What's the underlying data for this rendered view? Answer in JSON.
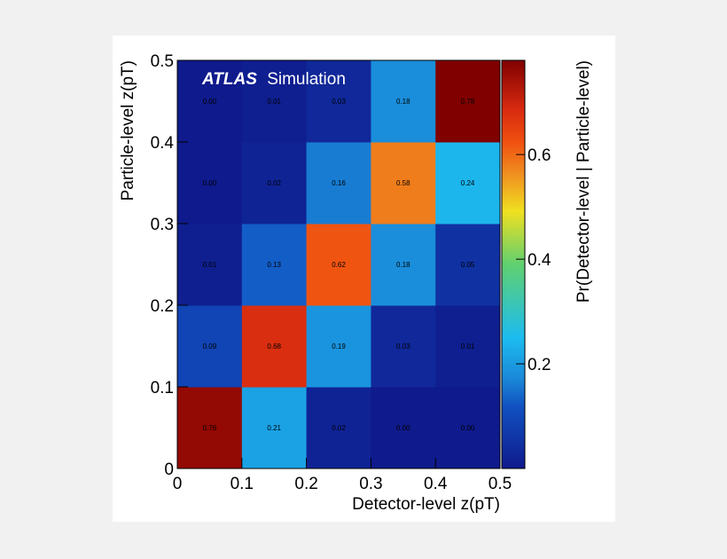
{
  "chart_data": {
    "type": "heatmap",
    "annotation": {
      "bold": "ATLAS",
      "text": "Simulation"
    },
    "xlabel": "Detector-level z(pT)",
    "ylabel": "Particle-level z(pT)",
    "colorbar_label": "Pr(Detector-level | Particle-level)",
    "xlim": [
      0,
      0.5
    ],
    "xticks": [
      0,
      0.1,
      0.2,
      0.3,
      0.4,
      0.5
    ],
    "ylim": [
      0,
      0.5
    ],
    "yticks": [
      0,
      0.1,
      0.2,
      0.3,
      0.4,
      0.5
    ],
    "zlim": [
      0,
      0.78
    ],
    "zticks": [
      0.2,
      0.4,
      0.6
    ],
    "colormap": [
      [
        0,
        "#0f1a8c"
      ],
      [
        0.15,
        "#1150c0"
      ],
      [
        0.22,
        "#1a88d8"
      ],
      [
        0.32,
        "#1cbcf0"
      ],
      [
        0.5,
        "#60d070"
      ],
      [
        0.63,
        "#f0e020"
      ],
      [
        0.72,
        "#f09020"
      ],
      [
        0.8,
        "#f05010"
      ],
      [
        0.88,
        "#d82a10"
      ],
      [
        1,
        "#800000"
      ]
    ],
    "z": [
      [
        0.76,
        0.21,
        0.02,
        0.0,
        0.0
      ],
      [
        0.09,
        0.68,
        0.19,
        0.03,
        0.01
      ],
      [
        0.01,
        0.13,
        0.62,
        0.18,
        0.05
      ],
      [
        0.0,
        0.02,
        0.16,
        0.58,
        0.24
      ],
      [
        0.0,
        0.01,
        0.03,
        0.18,
        0.78
      ]
    ],
    "value_labels": [
      [
        "0.76",
        "0.21",
        "0.02",
        "0.00",
        "0.00"
      ],
      [
        "0.09",
        "0.68",
        "0.19",
        "0.03",
        "0.01"
      ],
      [
        "0.01",
        "0.13",
        "0.62",
        "0.18",
        "0.05"
      ],
      [
        "0.00",
        "0.02",
        "0.16",
        "0.58",
        "0.24"
      ],
      [
        "0.00",
        "0.01",
        "0.03",
        "0.18",
        "0.78"
      ]
    ]
  }
}
